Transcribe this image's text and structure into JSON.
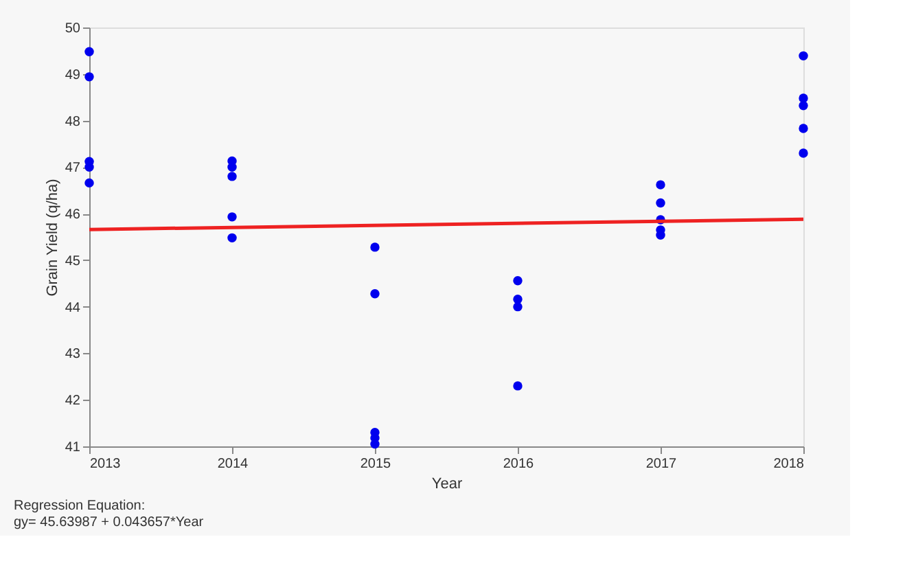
{
  "chart_data": {
    "type": "scatter",
    "xlabel": "Year",
    "ylabel": "Grain Yield (q/ha)",
    "annotations": [
      "Regression Equation:",
      "gy=  45.63987 + 0.043657*Year"
    ],
    "xlim": [
      2013,
      2018
    ],
    "xticks": [
      2013,
      2014,
      2015,
      2016,
      2017,
      2018
    ],
    "ylim": [
      41,
      50
    ],
    "yticks": [
      41,
      42,
      43,
      44,
      45,
      46,
      47,
      48,
      49,
      50
    ],
    "grid": false,
    "marker": "circle",
    "series": [
      {
        "color": "#0000ee",
        "x": [
          2013,
          2013,
          2013,
          2013,
          2013,
          2014,
          2014,
          2014,
          2014,
          2014,
          2015,
          2015,
          2015,
          2015,
          2015,
          2016,
          2016,
          2016,
          2016,
          2017,
          2017,
          2017,
          2017,
          2017,
          2018,
          2018,
          2018,
          2018,
          2018
        ],
        "values": [
          49.48,
          48.94,
          47.12,
          47.0,
          46.66,
          47.13,
          47.0,
          46.8,
          45.93,
          45.48,
          45.28,
          44.28,
          41.3,
          41.18,
          41.05,
          44.56,
          44.16,
          44.0,
          42.3,
          46.62,
          46.23,
          45.87,
          45.65,
          45.54,
          49.39,
          48.48,
          48.32,
          47.83,
          47.3
        ]
      },
      {
        "type": "line",
        "color": "#ee2222",
        "x": [
          2013,
          2018
        ],
        "values": [
          45.66,
          45.88
        ],
        "marker": "none"
      }
    ]
  }
}
